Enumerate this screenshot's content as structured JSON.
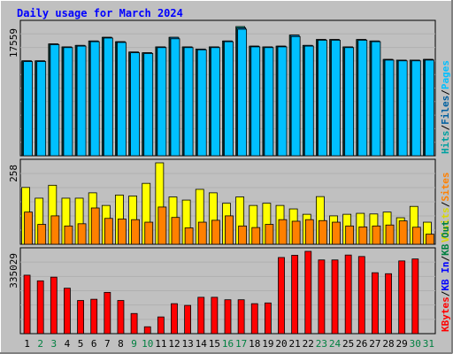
{
  "chart_data": {
    "type": "bar",
    "title": "Daily usage for March 2024",
    "categories": [
      "1",
      "2",
      "3",
      "4",
      "5",
      "6",
      "7",
      "8",
      "9",
      "10",
      "11",
      "12",
      "13",
      "14",
      "15",
      "16",
      "17",
      "18",
      "19",
      "20",
      "21",
      "22",
      "23",
      "24",
      "25",
      "26",
      "27",
      "28",
      "29",
      "30",
      "31"
    ],
    "weekend_days": [
      "2",
      "3",
      "9",
      "10",
      "16",
      "17",
      "23",
      "24",
      "30",
      "31"
    ],
    "panels": [
      {
        "id": "hits",
        "ymax_label": "17559",
        "ymax": 17559,
        "legend": [
          {
            "text": "Hits",
            "color": "#00a0a0"
          },
          {
            "text": "/",
            "color": "#000000"
          },
          {
            "text": "Files",
            "color": "#0060a0"
          },
          {
            "text": "/",
            "color": "#000000"
          },
          {
            "text": "Pages",
            "color": "#00c0ff"
          }
        ],
        "series": [
          {
            "name": "Hits",
            "color": "#00c0a0",
            "values": [
              12900,
              12900,
              15200,
              14800,
              15000,
              15600,
              16100,
              15500,
              14100,
              14000,
              14800,
              16100,
              14800,
              14500,
              14800,
              15600,
              17559,
              14900,
              14800,
              14900,
              16400,
              15000,
              15800,
              15800,
              14800,
              15800,
              15600,
              13100,
              13000,
              13000,
              13100
            ]
          },
          {
            "name": "Files",
            "color": "#0080c0",
            "values": [
              12900,
              12900,
              15200,
              14800,
              15000,
              15600,
              16100,
              15500,
              14100,
              14000,
              14800,
              16100,
              14800,
              14500,
              14800,
              15600,
              17400,
              14900,
              14800,
              14900,
              16400,
              15000,
              15800,
              15800,
              14800,
              15800,
              15600,
              13100,
              13000,
              13000,
              13100
            ]
          },
          {
            "name": "Pages",
            "color": "#00c0ff",
            "values": [
              12800,
              12800,
              15100,
              14700,
              14900,
              15500,
              16000,
              15400,
              14000,
              13900,
              14700,
              15900,
              14700,
              14400,
              14700,
              15500,
              17200,
              14800,
              14700,
              14800,
              16200,
              14900,
              15700,
              15700,
              14700,
              15700,
              15500,
              13000,
              12900,
              12900,
              13000
            ]
          }
        ]
      },
      {
        "id": "visits",
        "ymax_label": "258",
        "ymax": 258,
        "legend": [
          {
            "text": "Visits",
            "color": "#d8d800"
          },
          {
            "text": "/",
            "color": "#000000"
          },
          {
            "text": "Sites",
            "color": "#ff8000"
          }
        ],
        "series": [
          {
            "name": "Visits",
            "color": "#ffff00",
            "values": [
              180,
              146,
              187,
              146,
              146,
              163,
              123,
              156,
              153,
              193,
              258,
              150,
              140,
              174,
              163,
              130,
              150,
              123,
              130,
              123,
              112,
              95,
              151,
              90,
              95,
              98,
              96,
              102,
              84,
              120,
              70
            ]
          },
          {
            "name": "Sites",
            "color": "#ff8000",
            "values": [
              102,
              63,
              90,
              58,
              65,
              115,
              82,
              80,
              78,
              70,
              118,
              85,
              52,
              70,
              76,
              90,
              58,
              53,
              63,
              78,
              73,
              78,
              75,
              70,
              58,
              55,
              58,
              61,
              74,
              54,
              32
            ]
          }
        ]
      },
      {
        "id": "kbytes",
        "ymax_label": "335029",
        "ymax": 335029,
        "legend": [
          {
            "text": "KBytes",
            "color": "#ff0000"
          },
          {
            "text": "/",
            "color": "#000000"
          },
          {
            "text": "KB In",
            "color": "#0000ff"
          },
          {
            "text": "/",
            "color": "#000000"
          },
          {
            "text": "KB Out",
            "color": "#008040"
          }
        ],
        "series": [
          {
            "name": "KBytes",
            "color": "#ff0000",
            "values": [
              238000,
              215000,
              230000,
              185000,
              135000,
              140000,
              168000,
              135000,
              82000,
              28000,
              68000,
              122000,
              115000,
              148000,
              148000,
              138000,
              138000,
              122000,
              125000,
              310000,
              319000,
              335029,
              300000,
              300000,
              320000,
              314000,
              248000,
              244000,
              296000,
              304000,
              0
            ]
          }
        ]
      }
    ]
  }
}
